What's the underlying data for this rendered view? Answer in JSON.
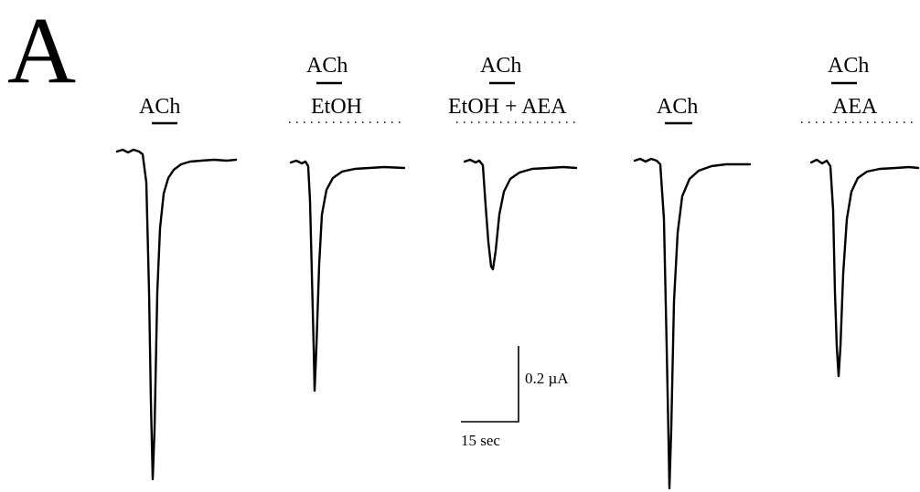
{
  "panel_label": "A",
  "traces": [
    {
      "id": "t1",
      "drug_label": "ACh",
      "condition_label": "",
      "bath": "none",
      "relative_amplitude": 1.0
    },
    {
      "id": "t2",
      "drug_label": "ACh",
      "condition_label": "EtOH",
      "bath": "EtOH",
      "relative_amplitude": 0.68
    },
    {
      "id": "t3",
      "drug_label": "ACh",
      "condition_label": "EtOH + AEA",
      "bath": "EtOH + AEA",
      "relative_amplitude": 0.3
    },
    {
      "id": "t4",
      "drug_label": "ACh",
      "condition_label": "",
      "bath": "none",
      "relative_amplitude": 0.99
    },
    {
      "id": "t5",
      "drug_label": "ACh",
      "condition_label": "AEA",
      "bath": "AEA",
      "relative_amplitude": 0.65
    }
  ],
  "scale_bars": {
    "current_label": "0.2 µA",
    "time_label": "15 sec"
  }
}
